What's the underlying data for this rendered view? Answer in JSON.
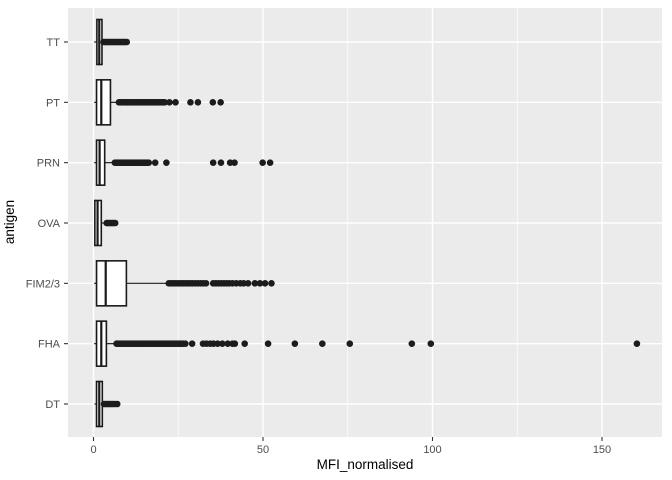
{
  "chart_data": {
    "type": "boxplot",
    "orientation": "horizontal",
    "title": "",
    "xlabel": "MFI_normalised",
    "ylabel": "antigen",
    "x_ticks": [
      0,
      50,
      100,
      150
    ],
    "x_tick_labels": [
      "0",
      "50",
      "100",
      "150"
    ],
    "x_minor_ticks": [
      25,
      75,
      125
    ],
    "xlim": [
      -7.5,
      167.5
    ],
    "grid": "ggplot-grey",
    "legend": "none",
    "categories_top_to_bottom": [
      "TT",
      "PT",
      "PRN",
      "OVA",
      "FIM2/3",
      "FHA",
      "DT"
    ],
    "series": [
      {
        "antigen": "TT",
        "whisker_low": 0.2,
        "q1": 1.0,
        "median": 1.7,
        "q3": 2.5,
        "whisker_high": 2.8,
        "outliers": [
          3.0,
          3.4,
          3.8,
          4.2,
          4.6,
          5.0,
          5.4,
          5.8,
          6.2,
          6.6,
          7.0,
          7.4,
          7.8,
          8.2,
          8.6,
          9.0,
          9.4,
          9.8
        ]
      },
      {
        "antigen": "PT",
        "whisker_low": 0.2,
        "q1": 0.9,
        "median": 2.3,
        "q3": 5.0,
        "whisker_high": 7.2,
        "outliers": [
          7.5,
          7.9,
          8.3,
          8.7,
          9.1,
          9.5,
          9.9,
          10.3,
          10.7,
          11.1,
          11.5,
          11.9,
          12.3,
          12.7,
          13.1,
          13.5,
          13.9,
          14.3,
          14.7,
          15.1,
          15.5,
          15.9,
          16.3,
          16.7,
          17.1,
          17.5,
          17.9,
          18.3,
          18.7,
          19.1,
          19.5,
          19.9,
          20.3,
          20.7,
          21.0,
          22.4,
          24.2,
          28.6,
          30.8,
          35.2,
          37.5
        ]
      },
      {
        "antigen": "PRN",
        "whisker_low": 0.2,
        "q1": 0.9,
        "median": 1.8,
        "q3": 3.3,
        "whisker_high": 5.8,
        "outliers": [
          6.3,
          6.7,
          7.1,
          7.5,
          7.9,
          8.3,
          8.7,
          9.1,
          9.5,
          9.9,
          10.3,
          10.7,
          11.1,
          11.5,
          11.9,
          12.3,
          12.7,
          13.1,
          13.5,
          13.9,
          14.3,
          14.7,
          15.1,
          15.5,
          15.9,
          16.3,
          18.2,
          21.5,
          35.3,
          37.6,
          40.3,
          41.6,
          49.9,
          52.1
        ]
      },
      {
        "antigen": "OVA",
        "whisker_low": 0.2,
        "q1": 0.4,
        "median": 1.2,
        "q3": 2.3,
        "whisker_high": 3.6,
        "outliers": [
          3.9,
          4.3,
          4.7,
          5.1,
          5.5,
          5.9,
          6.4
        ]
      },
      {
        "antigen": "FIM2/3",
        "whisker_low": 0.2,
        "q1": 0.9,
        "median": 3.6,
        "q3": 9.7,
        "whisker_high": 21.3,
        "outliers": [
          22.2,
          22.9,
          23.6,
          24.3,
          25.0,
          25.7,
          26.4,
          27.1,
          27.8,
          28.5,
          29.2,
          30.0,
          30.8,
          31.6,
          32.4,
          33.2,
          35.3,
          36.1,
          36.9,
          37.7,
          38.5,
          39.3,
          40.1,
          41.0,
          42.1,
          43.3,
          44.3,
          45.6,
          47.6,
          49.1,
          50.6,
          52.5
        ]
      },
      {
        "antigen": "FHA",
        "whisker_low": 0.2,
        "q1": 0.9,
        "median": 2.3,
        "q3": 3.8,
        "whisker_high": 6.3,
        "outliers": [
          6.8,
          7.2,
          7.6,
          8.0,
          8.4,
          8.8,
          9.2,
          9.6,
          10.0,
          10.4,
          10.8,
          11.2,
          11.6,
          12.0,
          12.4,
          12.8,
          13.2,
          13.6,
          14.0,
          14.4,
          14.8,
          15.2,
          15.6,
          16.0,
          16.4,
          16.8,
          17.2,
          17.6,
          18.0,
          18.4,
          18.8,
          19.2,
          19.6,
          20.0,
          20.4,
          20.8,
          21.2,
          21.6,
          22.0,
          22.4,
          22.8,
          23.2,
          23.6,
          24.0,
          24.4,
          24.8,
          25.2,
          25.6,
          26.0,
          26.4,
          27.1,
          29.1,
          32.3,
          33.3,
          34.4,
          35.4,
          36.6,
          38.0,
          39.6,
          41.0,
          41.7,
          44.6,
          51.5,
          59.4,
          67.5,
          75.6,
          93.9,
          99.5,
          160.3
        ]
      },
      {
        "antigen": "DT",
        "whisker_low": 0.3,
        "q1": 0.9,
        "median": 1.7,
        "q3": 2.6,
        "whisker_high": 3.0,
        "outliers": [
          3.1,
          3.6,
          4.1,
          4.6,
          5.1,
          5.7,
          6.3,
          7.0
        ]
      }
    ],
    "style": {
      "panel_bg": "#EBEBEB",
      "grid_color": "#FFFFFF",
      "box_fill": "#FFFFFF",
      "box_stroke": "#1A1A1A",
      "outlier_color": "#1C1C1C",
      "tick_mark_color": "#333333",
      "tick_label_color": "#4D4D4D",
      "axis_title_color": "#000000"
    }
  }
}
